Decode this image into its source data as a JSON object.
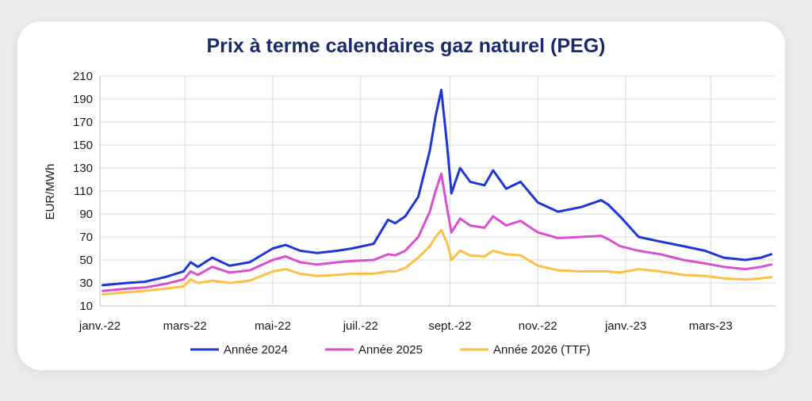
{
  "chart_data": {
    "type": "line",
    "title": "Prix à terme calendaires gaz naturel (PEG)",
    "ylabel": "EUR/MWh",
    "xlabel": "",
    "ylim": [
      10,
      210
    ],
    "yticks": [
      10,
      30,
      50,
      70,
      90,
      110,
      130,
      150,
      170,
      190,
      210
    ],
    "xlim": [
      "2022-01-01",
      "2023-04-15"
    ],
    "xticks": [
      {
        "date": "2022-01-01",
        "label": "janv.-22"
      },
      {
        "date": "2022-03-01",
        "label": "mars-22"
      },
      {
        "date": "2022-05-01",
        "label": "mai-22"
      },
      {
        "date": "2022-07-01",
        "label": "juil.-22"
      },
      {
        "date": "2022-09-01",
        "label": "sept.-22"
      },
      {
        "date": "2022-11-01",
        "label": "nov.-22"
      },
      {
        "date": "2023-01-01",
        "label": "janv.-23"
      },
      {
        "date": "2023-03-01",
        "label": "mars-23"
      }
    ],
    "grid": true,
    "legend_position": "bottom",
    "series": [
      {
        "name": "Année 2024",
        "color": "#1f35d6",
        "points": [
          [
            "2022-01-03",
            28
          ],
          [
            "2022-01-20",
            30
          ],
          [
            "2022-02-01",
            31
          ],
          [
            "2022-02-15",
            35
          ],
          [
            "2022-02-28",
            40
          ],
          [
            "2022-03-05",
            48
          ],
          [
            "2022-03-10",
            44
          ],
          [
            "2022-03-20",
            52
          ],
          [
            "2022-04-01",
            45
          ],
          [
            "2022-04-15",
            48
          ],
          [
            "2022-05-01",
            60
          ],
          [
            "2022-05-10",
            63
          ],
          [
            "2022-05-20",
            58
          ],
          [
            "2022-06-01",
            56
          ],
          [
            "2022-06-15",
            58
          ],
          [
            "2022-06-25",
            60
          ],
          [
            "2022-07-10",
            64
          ],
          [
            "2022-07-20",
            85
          ],
          [
            "2022-07-25",
            82
          ],
          [
            "2022-08-01",
            88
          ],
          [
            "2022-08-10",
            105
          ],
          [
            "2022-08-18",
            145
          ],
          [
            "2022-08-22",
            175
          ],
          [
            "2022-08-26",
            198
          ],
          [
            "2022-08-30",
            150
          ],
          [
            "2022-09-02",
            108
          ],
          [
            "2022-09-08",
            130
          ],
          [
            "2022-09-15",
            118
          ],
          [
            "2022-09-25",
            115
          ],
          [
            "2022-10-01",
            128
          ],
          [
            "2022-10-10",
            112
          ],
          [
            "2022-10-20",
            118
          ],
          [
            "2022-11-01",
            100
          ],
          [
            "2022-11-15",
            92
          ],
          [
            "2022-12-01",
            96
          ],
          [
            "2022-12-15",
            102
          ],
          [
            "2022-12-20",
            98
          ],
          [
            "2022-12-28",
            88
          ],
          [
            "2023-01-10",
            70
          ],
          [
            "2023-01-25",
            66
          ],
          [
            "2023-02-10",
            62
          ],
          [
            "2023-02-25",
            58
          ],
          [
            "2023-03-10",
            52
          ],
          [
            "2023-03-25",
            50
          ],
          [
            "2023-04-05",
            52
          ],
          [
            "2023-04-12",
            55
          ]
        ]
      },
      {
        "name": "Année 2025",
        "color": "#d94fd2",
        "points": [
          [
            "2022-01-03",
            23
          ],
          [
            "2022-01-20",
            25
          ],
          [
            "2022-02-01",
            26
          ],
          [
            "2022-02-15",
            29
          ],
          [
            "2022-02-28",
            33
          ],
          [
            "2022-03-05",
            40
          ],
          [
            "2022-03-10",
            37
          ],
          [
            "2022-03-20",
            44
          ],
          [
            "2022-04-01",
            39
          ],
          [
            "2022-04-15",
            41
          ],
          [
            "2022-05-01",
            50
          ],
          [
            "2022-05-10",
            53
          ],
          [
            "2022-05-20",
            48
          ],
          [
            "2022-06-01",
            46
          ],
          [
            "2022-06-15",
            48
          ],
          [
            "2022-06-25",
            49
          ],
          [
            "2022-07-10",
            50
          ],
          [
            "2022-07-20",
            55
          ],
          [
            "2022-07-25",
            54
          ],
          [
            "2022-08-01",
            58
          ],
          [
            "2022-08-10",
            70
          ],
          [
            "2022-08-18",
            92
          ],
          [
            "2022-08-22",
            110
          ],
          [
            "2022-08-26",
            125
          ],
          [
            "2022-08-30",
            95
          ],
          [
            "2022-09-02",
            74
          ],
          [
            "2022-09-08",
            86
          ],
          [
            "2022-09-15",
            80
          ],
          [
            "2022-09-25",
            78
          ],
          [
            "2022-10-01",
            88
          ],
          [
            "2022-10-10",
            80
          ],
          [
            "2022-10-20",
            84
          ],
          [
            "2022-11-01",
            74
          ],
          [
            "2022-11-15",
            69
          ],
          [
            "2022-12-01",
            70
          ],
          [
            "2022-12-15",
            71
          ],
          [
            "2022-12-20",
            68
          ],
          [
            "2022-12-28",
            62
          ],
          [
            "2023-01-10",
            58
          ],
          [
            "2023-01-25",
            55
          ],
          [
            "2023-02-10",
            50
          ],
          [
            "2023-02-25",
            47
          ],
          [
            "2023-03-10",
            44
          ],
          [
            "2023-03-25",
            42
          ],
          [
            "2023-04-05",
            44
          ],
          [
            "2023-04-12",
            46
          ]
        ]
      },
      {
        "name": "Année 2026 (TTF)",
        "color": "#ffbf47",
        "points": [
          [
            "2022-01-03",
            20
          ],
          [
            "2022-01-20",
            22
          ],
          [
            "2022-02-01",
            23
          ],
          [
            "2022-02-15",
            25
          ],
          [
            "2022-02-28",
            27
          ],
          [
            "2022-03-05",
            33
          ],
          [
            "2022-03-10",
            30
          ],
          [
            "2022-03-20",
            32
          ],
          [
            "2022-04-01",
            30
          ],
          [
            "2022-04-15",
            32
          ],
          [
            "2022-05-01",
            40
          ],
          [
            "2022-05-10",
            42
          ],
          [
            "2022-05-20",
            38
          ],
          [
            "2022-06-01",
            36
          ],
          [
            "2022-06-15",
            37
          ],
          [
            "2022-06-25",
            38
          ],
          [
            "2022-07-10",
            38
          ],
          [
            "2022-07-20",
            40
          ],
          [
            "2022-07-25",
            40
          ],
          [
            "2022-08-01",
            43
          ],
          [
            "2022-08-10",
            52
          ],
          [
            "2022-08-18",
            62
          ],
          [
            "2022-08-22",
            70
          ],
          [
            "2022-08-26",
            76
          ],
          [
            "2022-08-30",
            65
          ],
          [
            "2022-09-02",
            50
          ],
          [
            "2022-09-08",
            58
          ],
          [
            "2022-09-15",
            54
          ],
          [
            "2022-09-25",
            53
          ],
          [
            "2022-10-01",
            58
          ],
          [
            "2022-10-10",
            55
          ],
          [
            "2022-10-20",
            54
          ],
          [
            "2022-11-01",
            45
          ],
          [
            "2022-11-15",
            41
          ],
          [
            "2022-12-01",
            40
          ],
          [
            "2022-12-15",
            40
          ],
          [
            "2022-12-20",
            40
          ],
          [
            "2022-12-28",
            39
          ],
          [
            "2023-01-10",
            42
          ],
          [
            "2023-01-25",
            40
          ],
          [
            "2023-02-10",
            37
          ],
          [
            "2023-02-25",
            36
          ],
          [
            "2023-03-10",
            34
          ],
          [
            "2023-03-25",
            33
          ],
          [
            "2023-04-05",
            34
          ],
          [
            "2023-04-12",
            35
          ]
        ]
      }
    ]
  }
}
